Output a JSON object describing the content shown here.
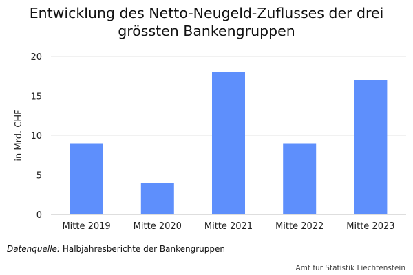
{
  "chart_data": {
    "type": "bar",
    "title_lines": [
      "Entwicklung des Netto-Neugeld-Zuflusses der drei",
      "grössten Bankengruppen"
    ],
    "ylabel": "in Mrd. CHF",
    "xlabel": "",
    "categories": [
      "Mitte 2019",
      "Mitte 2020",
      "Mitte 2021",
      "Mitte 2022",
      "Mitte 2023"
    ],
    "values": [
      9,
      4,
      18,
      9,
      17
    ],
    "ylim": [
      0,
      20
    ],
    "yticks": [
      "0",
      "5",
      "10",
      "15",
      "20"
    ],
    "grid": true,
    "legend": "none",
    "colors": {
      "bar": "#5e8ffc",
      "grid": "#e3e3e3",
      "axis": "#bdbdbd",
      "text": "#222222"
    }
  },
  "footer": {
    "source_label": "Datenquelle:",
    "source_text": "Halbjahresberichte der Bankengruppen",
    "credit": "Amt für Statistik Liechtenstein"
  }
}
